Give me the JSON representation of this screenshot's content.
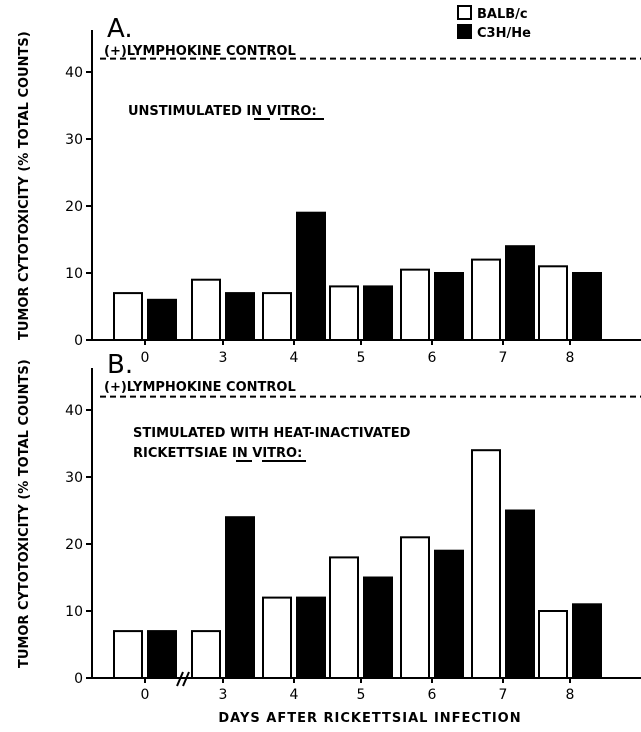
{
  "legend": {
    "items": [
      {
        "label": "BALB/c",
        "fill": "#ffffff"
      },
      {
        "label": "C3H/He",
        "fill": "#000000"
      }
    ]
  },
  "xlabel": "DAYS AFTER RICKETTSIAL INFECTION",
  "chart_data": [
    {
      "type": "bar",
      "panel_label": "A.",
      "ylabel": "TUMOR CYTOTOXICITY (% TOTAL COUNTS)",
      "annotation": "UNSTIMULATED IN VITRO:",
      "reference_label": "(+)LYMPHOKINE CONTROL",
      "reference_value": 42,
      "categories": [
        "0",
        "3",
        "4",
        "5",
        "6",
        "7",
        "8"
      ],
      "series": [
        {
          "name": "BALB/c",
          "values": [
            7,
            9,
            7,
            8,
            10.5,
            12,
            11
          ]
        },
        {
          "name": "C3H/He",
          "values": [
            6,
            7,
            19,
            8,
            10,
            14,
            10
          ]
        }
      ],
      "yticks": [
        0,
        10,
        20,
        30,
        40
      ],
      "ylim": [
        0,
        46
      ]
    },
    {
      "type": "bar",
      "panel_label": "B.",
      "ylabel": "TUMOR CYTOTOXICITY (% TOTAL COUNTS)",
      "annotation_line1": "STIMULATED WITH HEAT-INACTIVATED",
      "annotation_line2": "RICKETTSIAE IN VITRO:",
      "reference_label": "(+)LYMPHOKINE CONTROL",
      "reference_value": 42,
      "categories": [
        "0",
        "3",
        "4",
        "5",
        "6",
        "7",
        "8"
      ],
      "series": [
        {
          "name": "BALB/c",
          "values": [
            7,
            7,
            12,
            18,
            21,
            34,
            10
          ]
        },
        {
          "name": "C3H/He",
          "values": [
            7,
            24,
            12,
            15,
            19,
            25,
            11
          ]
        }
      ],
      "yticks": [
        0,
        10,
        20,
        30,
        40
      ],
      "ylim": [
        0,
        46
      ]
    }
  ]
}
